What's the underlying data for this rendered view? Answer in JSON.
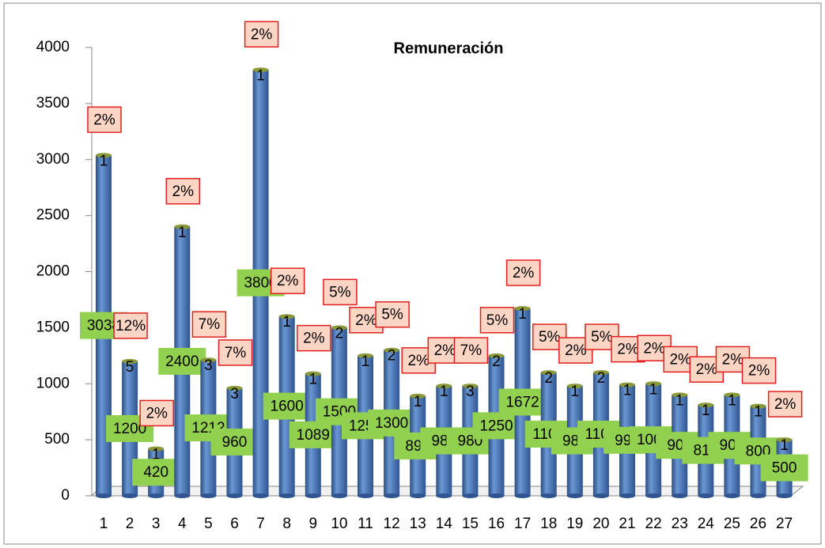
{
  "chart_data": {
    "type": "bar",
    "title": "Remuneración",
    "categories": [
      "1",
      "2",
      "3",
      "4",
      "5",
      "6",
      "7",
      "8",
      "9",
      "10",
      "11",
      "12",
      "13",
      "14",
      "15",
      "16",
      "17",
      "18",
      "19",
      "20",
      "21",
      "22",
      "23",
      "24",
      "25",
      "26",
      "27"
    ],
    "values": [
      3038,
      1200,
      420,
      2400,
      1212,
      960,
      3800,
      1600,
      1089,
      1500,
      1250,
      1300,
      890,
      980,
      980,
      1250,
      1672,
      1100,
      980,
      1100,
      990,
      1000,
      900,
      810,
      900,
      800,
      500
    ],
    "counts": [
      1,
      5,
      1,
      1,
      3,
      3,
      1,
      1,
      1,
      2,
      1,
      2,
      1,
      1,
      3,
      2,
      1,
      2,
      1,
      2,
      1,
      1,
      1,
      1,
      1,
      1,
      1
    ],
    "shares": [
      2,
      12,
      2,
      2,
      7,
      7,
      2,
      2,
      2,
      5,
      2,
      5,
      2,
      2,
      7,
      5,
      2,
      5,
      2,
      5,
      2,
      2,
      2,
      2,
      2,
      2,
      2
    ],
    "share_labels": [
      "2%",
      "12%",
      "2%",
      "2%",
      "7%",
      "7%",
      "2%",
      "2%",
      "2%",
      "5%",
      "2%",
      "5%",
      "2%",
      "2%",
      "7%",
      "5%",
      "2%",
      "5%",
      "2%",
      "5%",
      "2%",
      "2%",
      "2%",
      "2%",
      "2%",
      "2%",
      "2%"
    ],
    "color": "#4f81bd",
    "ylim": [
      0,
      4000
    ],
    "yticks": [
      0,
      500,
      1000,
      1500,
      2000,
      2500,
      3000,
      3500,
      4000
    ]
  }
}
